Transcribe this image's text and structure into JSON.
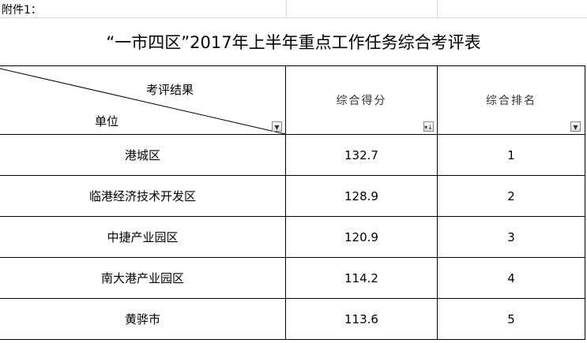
{
  "attachment_label": "附件1：",
  "title": "“一市四区”2017年上半年重点工作任务综合考评表",
  "header": {
    "diag_top": "考评结果",
    "diag_bottom": "单位",
    "score": "综合得分",
    "rank": "综合排名"
  },
  "rows": [
    {
      "unit": "港城区",
      "score": "132.7",
      "rank": "1"
    },
    {
      "unit": "临港经济技术开发区",
      "score": "128.9",
      "rank": "2"
    },
    {
      "unit": "中捷产业园区",
      "score": "120.9",
      "rank": "3"
    },
    {
      "unit": "南大港产业园区",
      "score": "114.2",
      "rank": "4"
    },
    {
      "unit": "黄骅市",
      "score": "113.6",
      "rank": "5"
    }
  ]
}
